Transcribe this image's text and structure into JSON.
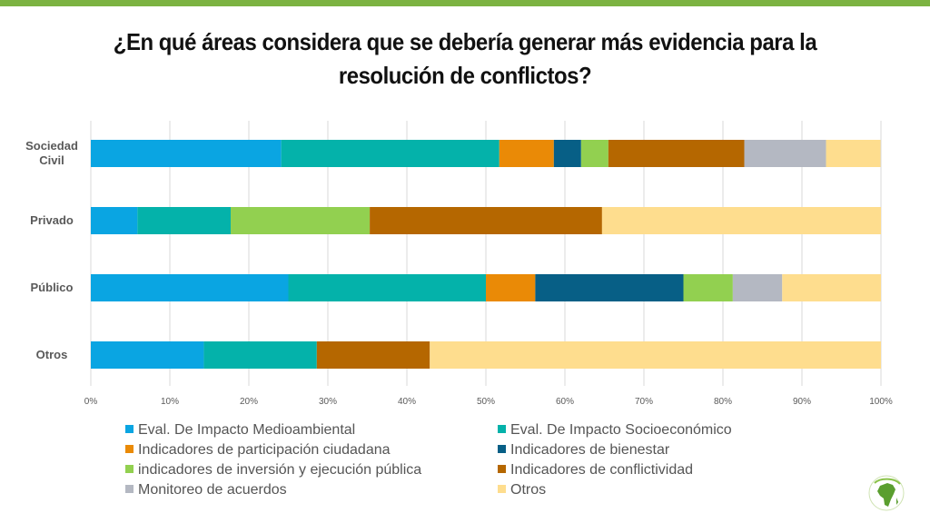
{
  "title": "¿En qué áreas considera que se debería generar más evidencia para la resolución de conflictos?",
  "colors": {
    "top_bar": "#7cb342",
    "series": [
      "#0aa5e2",
      "#04b2aa",
      "#ea8a06",
      "#075f86",
      "#92d050",
      "#b56700",
      "#b4b8c2",
      "#fedd8e"
    ]
  },
  "chart_data": {
    "type": "bar",
    "orientation": "horizontal",
    "stacked": "percent",
    "categories": [
      "Sociedad Civil",
      "Privado",
      "Público",
      "Otros"
    ],
    "category_lines": [
      [
        "Sociedad",
        "Civil"
      ],
      [
        "Privado"
      ],
      [
        "Público"
      ],
      [
        "Otros"
      ]
    ],
    "x_ticks": [
      "0%",
      "10%",
      "20%",
      "30%",
      "40%",
      "50%",
      "60%",
      "70%",
      "80%",
      "90%",
      "100%"
    ],
    "xlim": [
      0,
      100
    ],
    "grid": true,
    "legend_position": "bottom",
    "series": [
      {
        "name": "Eval. De Impacto Medioambiental",
        "values": [
          24.1,
          5.9,
          25.0,
          14.3
        ]
      },
      {
        "name": "Eval. De Impacto Socioeconómico",
        "values": [
          27.6,
          11.8,
          25.0,
          14.3
        ]
      },
      {
        "name": "Indicadores de participación ciudadana",
        "values": [
          6.9,
          0,
          6.25,
          0
        ]
      },
      {
        "name": "Indicadores de bienestar",
        "values": [
          3.45,
          0,
          18.75,
          0
        ]
      },
      {
        "name": "indicadores de inversión y ejecución pública",
        "values": [
          3.45,
          17.6,
          6.25,
          0
        ]
      },
      {
        "name": "Indicadores de conflictividad",
        "values": [
          17.2,
          29.4,
          0,
          14.3
        ]
      },
      {
        "name": "Monitoreo de acuerdos",
        "values": [
          10.35,
          0,
          6.25,
          0
        ]
      },
      {
        "name": "Otros",
        "values": [
          6.9,
          35.3,
          12.5,
          57.1
        ]
      }
    ]
  },
  "logo": {
    "icon": "globe-africa-icon"
  }
}
